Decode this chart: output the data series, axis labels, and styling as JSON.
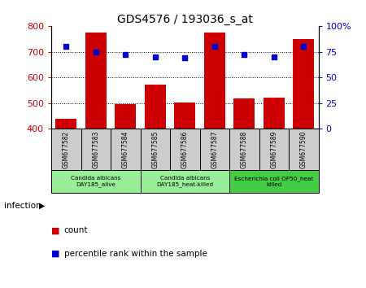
{
  "title": "GDS4576 / 193036_s_at",
  "samples": [
    "GSM677582",
    "GSM677583",
    "GSM677584",
    "GSM677585",
    "GSM677586",
    "GSM677587",
    "GSM677588",
    "GSM677589",
    "GSM677590"
  ],
  "counts": [
    440,
    775,
    497,
    573,
    504,
    773,
    517,
    522,
    748
  ],
  "percentiles": [
    80,
    75,
    72,
    70,
    69,
    80,
    72,
    70,
    80
  ],
  "ylim_left": [
    400,
    800
  ],
  "ylim_right": [
    0,
    100
  ],
  "yticks_left": [
    400,
    500,
    600,
    700,
    800
  ],
  "yticks_right": [
    0,
    25,
    50,
    75,
    100
  ],
  "bar_color": "#cc0000",
  "dot_color": "#0000cc",
  "groups": [
    {
      "label": "Candida albicans\nDAY185_alive",
      "start": 0,
      "end": 3,
      "color": "#99ee99"
    },
    {
      "label": "Candida albicans\nDAY185_heat-killed",
      "start": 3,
      "end": 6,
      "color": "#99ee99"
    },
    {
      "label": "Escherichia coli OP50_heat\nkilled",
      "start": 6,
      "end": 9,
      "color": "#44cc44"
    }
  ],
  "infection_label": "infection",
  "legend_count": "count",
  "legend_pct": "percentile rank within the sample",
  "tick_label_color_left": "#cc0000",
  "tick_label_color_right": "#0000cc",
  "sample_box_color": "#cccccc",
  "figure_bg": "#ffffff"
}
